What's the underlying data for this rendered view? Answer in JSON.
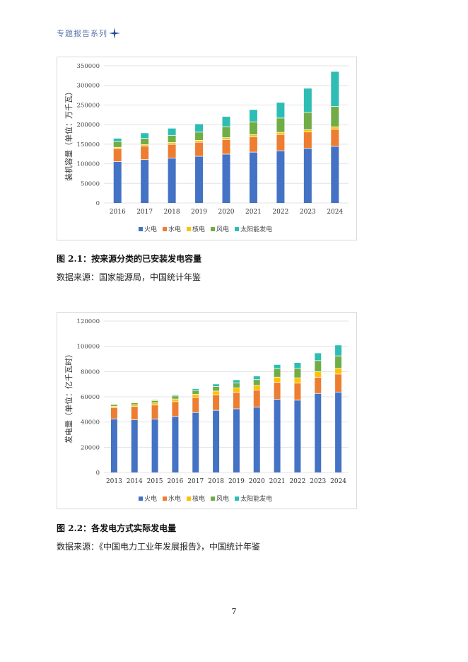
{
  "header": {
    "title": "专题报告系列",
    "icon": "four-point-star-icon"
  },
  "figures": [
    {
      "caption_label": "图 2.1：",
      "caption_text": "按来源分类的已安装发电容量",
      "source": "数据来源：国家能源局，中国统计年鉴"
    },
    {
      "caption_label": "图 2.2：",
      "caption_text": "各发电方式实际发电量",
      "source": "数据来源：《中国电力工业年发展报告》，中国统计年鉴"
    }
  ],
  "page_number": "7",
  "colors": {
    "thermal": "#4472c4",
    "hydro": "#ed7d31",
    "nuclear": "#ffc000",
    "wind": "#70ad47",
    "solar": "#2ebdb5"
  },
  "chart_data": [
    {
      "type": "bar",
      "stacked": true,
      "title": "",
      "xlabel": "",
      "ylabel": "装机容量（单位：万千瓦）",
      "ylim": [
        0,
        350000
      ],
      "yticks": [
        0,
        50000,
        100000,
        150000,
        200000,
        250000,
        300000,
        350000
      ],
      "grid": true,
      "legend_position": "bottom",
      "categories": [
        "2016",
        "2017",
        "2018",
        "2019",
        "2020",
        "2021",
        "2022",
        "2023",
        "2024"
      ],
      "series": [
        {
          "name": "火电",
          "values": [
            105388,
            110604,
            114408,
            119055,
            124517,
            129678,
            133239,
            139032,
            144445
          ]
        },
        {
          "name": "水电",
          "values": [
            33207,
            34411,
            35259,
            35804,
            37016,
            39094,
            41350,
            42154,
            43595
          ]
        },
        {
          "name": "核电",
          "values": [
            3364,
            3582,
            4466,
            4874,
            4989,
            5326,
            5553,
            5691,
            6083
          ]
        },
        {
          "name": "风电",
          "values": [
            14747,
            16400,
            18427,
            21005,
            28153,
            32848,
            36544,
            44134,
            52068
          ]
        },
        {
          "name": "太阳能发电",
          "values": [
            7631,
            13042,
            17433,
            20418,
            25343,
            30656,
            39261,
            60949,
            88666
          ]
        }
      ]
    },
    {
      "type": "bar",
      "stacked": true,
      "title": "",
      "xlabel": "",
      "ylabel": "发电量（单位：亿千瓦时）",
      "ylim": [
        0,
        120000
      ],
      "yticks": [
        0,
        20000,
        40000,
        60000,
        80000,
        100000,
        120000
      ],
      "grid": true,
      "legend_position": "bottom",
      "categories": [
        "2013",
        "2014",
        "2015",
        "2016",
        "2017",
        "2018",
        "2019",
        "2020",
        "2021",
        "2022",
        "2023",
        "2024"
      ],
      "series": [
        {
          "name": "火电",
          "values": [
            42470,
            41731,
            42307,
            44371,
            47546,
            49249,
            50465,
            51743,
            58059,
            57307,
            62657,
            63743
          ]
        },
        {
          "name": "水电",
          "values": [
            8921,
            10601,
            11127,
            11748,
            11947,
            12321,
            13021,
            13552,
            13401,
            13522,
            12836,
            14257
          ]
        },
        {
          "name": "核电",
          "values": [
            1115,
            1332,
            1714,
            2133,
            2481,
            2950,
            3487,
            3662,
            4075,
            4178,
            4347,
            4509
          ]
        },
        {
          "name": "风电",
          "values": [
            1383,
            1598,
            1856,
            2409,
            3046,
            3658,
            4057,
            4665,
            6556,
            7624,
            8859,
            9916
          ]
        },
        {
          "name": "太阳能发电",
          "values": [
            84,
            235,
            395,
            665,
            1178,
            1769,
            2240,
            2611,
            3270,
            4276,
            5842,
            8390
          ]
        }
      ]
    }
  ]
}
